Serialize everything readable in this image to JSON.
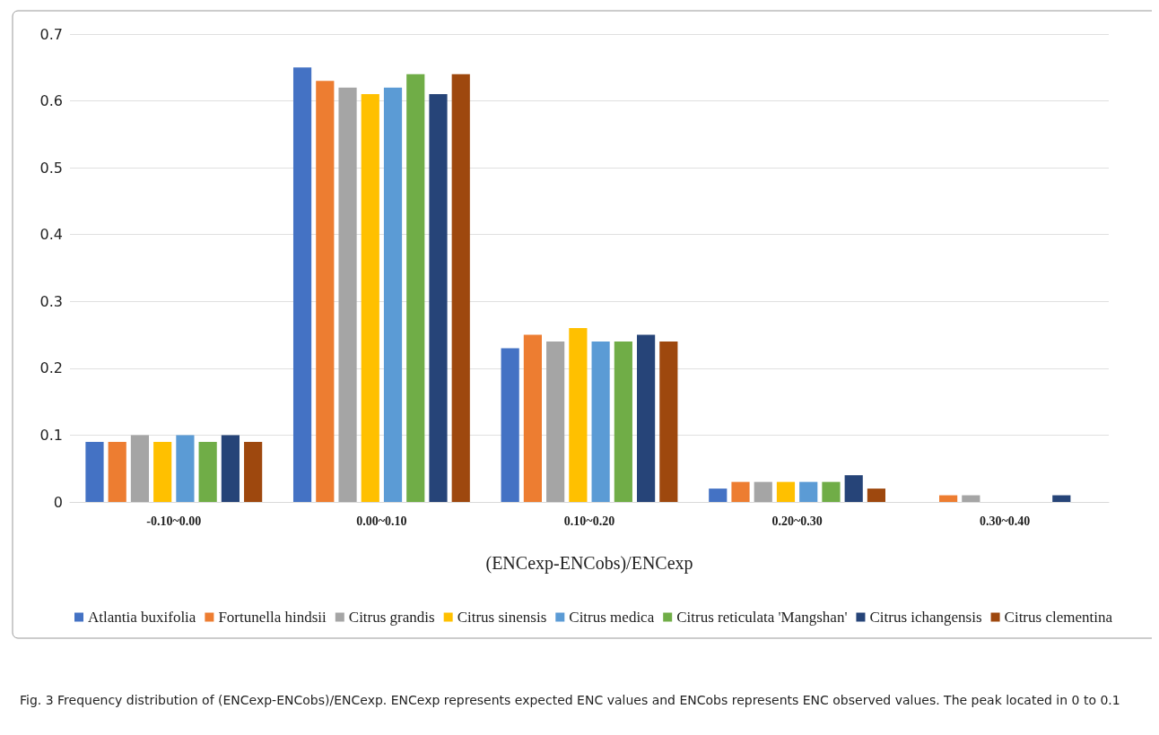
{
  "chart_data": {
    "type": "bar",
    "xlabel": "(ENCexp-ENCobs)/ENCexp",
    "categories": [
      "-0.10~0.00",
      "0.00~0.10",
      "0.10~0.20",
      "0.20~0.30",
      "0.30~0.40"
    ],
    "series": [
      {
        "name": "Atlantia buxifolia",
        "color": "#4472c4",
        "values": [
          0.09,
          0.65,
          0.23,
          0.02,
          0
        ]
      },
      {
        "name": "Fortunella hindsii",
        "color": "#ed7d31",
        "values": [
          0.09,
          0.63,
          0.25,
          0.03,
          0.01
        ]
      },
      {
        "name": "Citrus grandis",
        "color": "#a5a5a5",
        "values": [
          0.1,
          0.62,
          0.24,
          0.03,
          0.01
        ]
      },
      {
        "name": "Citrus sinensis",
        "color": "#ffc000",
        "values": [
          0.09,
          0.61,
          0.26,
          0.03,
          0
        ]
      },
      {
        "name": "Citrus medica",
        "color": "#5b9bd5",
        "values": [
          0.1,
          0.62,
          0.24,
          0.03,
          0
        ]
      },
      {
        "name": "Citrus reticulata 'Mangshan'",
        "color": "#70ad47",
        "values": [
          0.09,
          0.64,
          0.24,
          0.03,
          0
        ]
      },
      {
        "name": "Citrus ichangensis",
        "color": "#264478",
        "values": [
          0.1,
          0.61,
          0.25,
          0.04,
          0.01
        ]
      },
      {
        "name": "Citrus clementina",
        "color": "#9e480e",
        "values": [
          0.09,
          0.64,
          0.24,
          0.02,
          0
        ]
      }
    ],
    "ylim": [
      0,
      0.7
    ],
    "yticks": [
      0,
      0.1,
      0.2,
      0.3,
      0.4,
      0.5,
      0.6,
      0.7
    ],
    "grid": "y",
    "legend": "bottom",
    "annotations": [
      "Fig. 3 Frequency distribution of (ENCexp-ENCobs)/ENCexp. ENCexp represents expected ENC values and ENCobs represents ENC observed values. The peak located in 0 to 0.1"
    ]
  }
}
